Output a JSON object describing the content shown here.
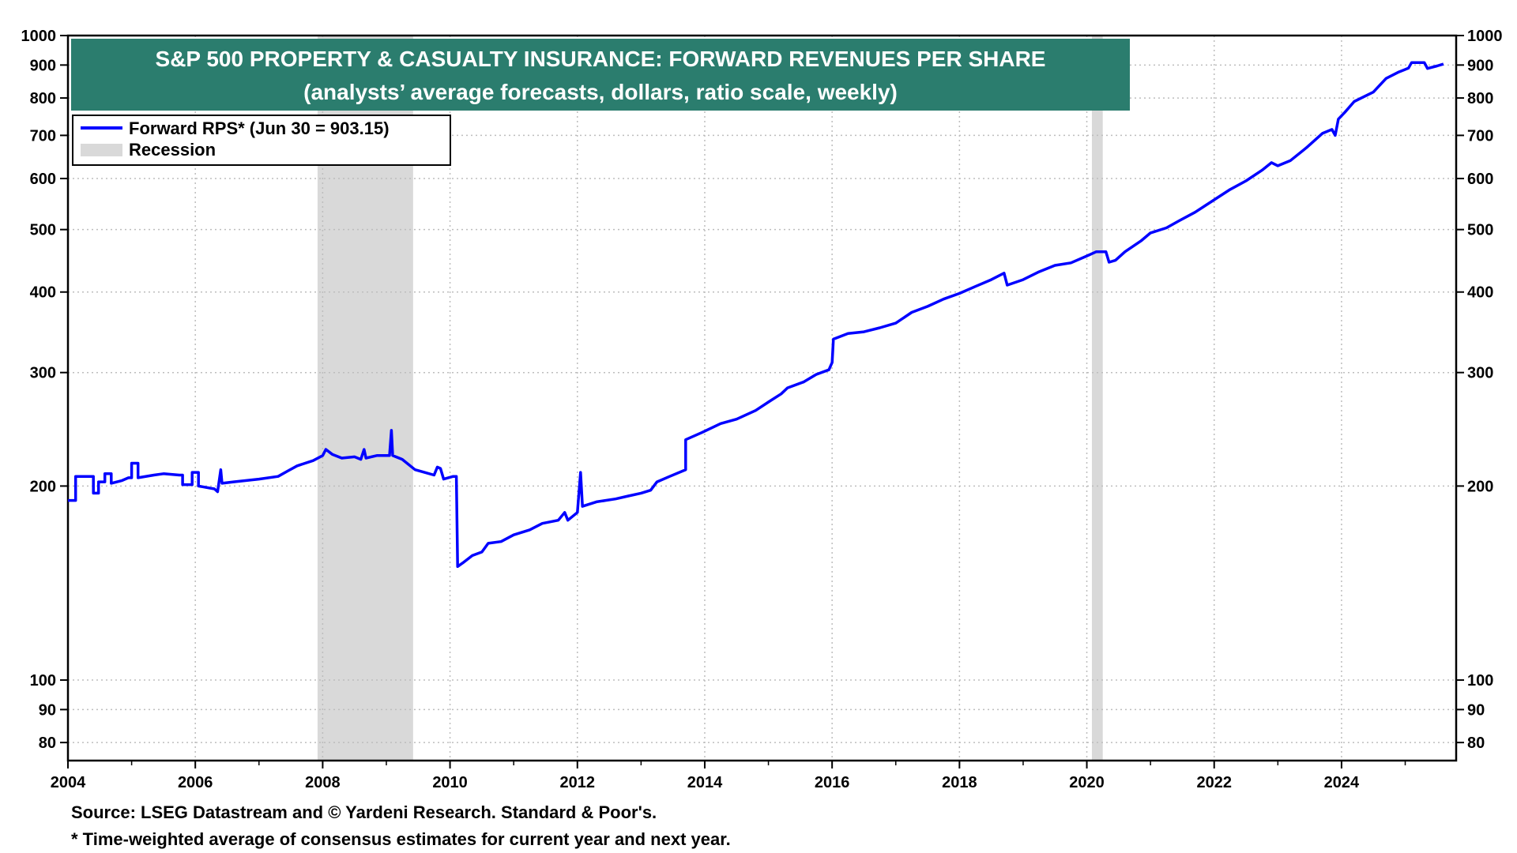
{
  "chart_data": {
    "type": "line",
    "title": "S&P 500 PROPERTY & CASUALTY INSURANCE: FORWARD REVENUES PER SHARE",
    "subtitle": "(analysts’ average forecasts, dollars, ratio scale, weekly)",
    "xlabel": "",
    "ylabel": "",
    "y_scale": "log",
    "ylim": [
      75,
      1000
    ],
    "xlim": [
      2004.0,
      2025.8
    ],
    "x_ticks": [
      "2004",
      "2006",
      "2008",
      "2010",
      "2012",
      "2014",
      "2016",
      "2018",
      "2020",
      "2022",
      "2024"
    ],
    "y_ticks": [
      {
        "value": 1000,
        "label": "1000"
      },
      {
        "value": 900,
        "label": "900"
      },
      {
        "value": 800,
        "label": "800"
      },
      {
        "value": 700,
        "label": "700"
      },
      {
        "value": 600,
        "label": "600"
      },
      {
        "value": 500,
        "label": "500"
      },
      {
        "value": 400,
        "label": "400"
      },
      {
        "value": 300,
        "label": "300"
      },
      {
        "value": 200,
        "label": "200"
      },
      {
        "value": 100,
        "label": "100"
      },
      {
        "value": 90,
        "label": "90"
      },
      {
        "value": 80,
        "label": "80"
      }
    ],
    "grid": true,
    "legend_position": "top-left",
    "legend": {
      "series_label": "Forward RPS* (Jun 30 = 903.15)",
      "recession_label": "Recession"
    },
    "recessions": [
      {
        "start": 2007.92,
        "end": 2009.42
      },
      {
        "start": 2020.08,
        "end": 2020.25
      }
    ],
    "series": [
      {
        "name": "Forward RPS* (Jun 30 = 903.15)",
        "color": "#0000ff",
        "points": [
          [
            2004.0,
            190
          ],
          [
            2004.12,
            190
          ],
          [
            2004.12,
            207
          ],
          [
            2004.4,
            207
          ],
          [
            2004.4,
            195
          ],
          [
            2004.48,
            195
          ],
          [
            2004.48,
            203
          ],
          [
            2004.58,
            203
          ],
          [
            2004.58,
            209
          ],
          [
            2004.68,
            209
          ],
          [
            2004.68,
            202
          ],
          [
            2004.85,
            204
          ],
          [
            2004.95,
            206
          ],
          [
            2005.0,
            206
          ],
          [
            2005.0,
            217
          ],
          [
            2005.1,
            217
          ],
          [
            2005.1,
            206
          ],
          [
            2005.35,
            208
          ],
          [
            2005.5,
            209
          ],
          [
            2005.75,
            208
          ],
          [
            2005.8,
            208
          ],
          [
            2005.8,
            201
          ],
          [
            2005.95,
            201
          ],
          [
            2005.95,
            210
          ],
          [
            2006.05,
            210
          ],
          [
            2006.05,
            200
          ],
          [
            2006.3,
            198
          ],
          [
            2006.35,
            196
          ],
          [
            2006.4,
            212
          ],
          [
            2006.42,
            202
          ],
          [
            2006.6,
            203
          ],
          [
            2006.8,
            204
          ],
          [
            2007.0,
            205
          ],
          [
            2007.3,
            207
          ],
          [
            2007.45,
            211
          ],
          [
            2007.6,
            215
          ],
          [
            2007.85,
            219
          ],
          [
            2008.0,
            223
          ],
          [
            2008.05,
            228
          ],
          [
            2008.15,
            224
          ],
          [
            2008.3,
            221
          ],
          [
            2008.5,
            222
          ],
          [
            2008.6,
            220
          ],
          [
            2008.65,
            228
          ],
          [
            2008.68,
            221
          ],
          [
            2008.85,
            223
          ],
          [
            2009.05,
            223
          ],
          [
            2009.08,
            244
          ],
          [
            2009.1,
            223
          ],
          [
            2009.25,
            220
          ],
          [
            2009.45,
            212
          ],
          [
            2009.6,
            210
          ],
          [
            2009.75,
            208
          ],
          [
            2009.8,
            214
          ],
          [
            2009.85,
            213
          ],
          [
            2009.9,
            205
          ],
          [
            2010.05,
            207
          ],
          [
            2010.1,
            207
          ],
          [
            2010.12,
            150
          ],
          [
            2010.2,
            152
          ],
          [
            2010.35,
            156
          ],
          [
            2010.5,
            158
          ],
          [
            2010.6,
            163
          ],
          [
            2010.8,
            164
          ],
          [
            2011.0,
            168
          ],
          [
            2011.25,
            171
          ],
          [
            2011.45,
            175
          ],
          [
            2011.7,
            177
          ],
          [
            2011.8,
            182
          ],
          [
            2011.85,
            177
          ],
          [
            2012.0,
            182
          ],
          [
            2012.05,
            210
          ],
          [
            2012.08,
            186
          ],
          [
            2012.3,
            189
          ],
          [
            2012.6,
            191
          ],
          [
            2012.8,
            193
          ],
          [
            2013.0,
            195
          ],
          [
            2013.15,
            197
          ],
          [
            2013.25,
            203
          ],
          [
            2013.45,
            207
          ],
          [
            2013.7,
            212
          ],
          [
            2013.7,
            236
          ],
          [
            2013.95,
            242
          ],
          [
            2014.25,
            250
          ],
          [
            2014.5,
            254
          ],
          [
            2014.8,
            262
          ],
          [
            2015.0,
            270
          ],
          [
            2015.2,
            278
          ],
          [
            2015.3,
            284
          ],
          [
            2015.55,
            290
          ],
          [
            2015.75,
            298
          ],
          [
            2015.95,
            303
          ],
          [
            2016.0,
            311
          ],
          [
            2016.02,
            338
          ],
          [
            2016.25,
            345
          ],
          [
            2016.5,
            347
          ],
          [
            2016.75,
            352
          ],
          [
            2017.0,
            358
          ],
          [
            2017.25,
            372
          ],
          [
            2017.5,
            380
          ],
          [
            2017.75,
            390
          ],
          [
            2018.0,
            398
          ],
          [
            2018.25,
            408
          ],
          [
            2018.5,
            418
          ],
          [
            2018.7,
            428
          ],
          [
            2018.75,
            410
          ],
          [
            2019.0,
            418
          ],
          [
            2019.25,
            430
          ],
          [
            2019.5,
            440
          ],
          [
            2019.75,
            444
          ],
          [
            2020.0,
            455
          ],
          [
            2020.15,
            462
          ],
          [
            2020.3,
            462
          ],
          [
            2020.35,
            445
          ],
          [
            2020.45,
            448
          ],
          [
            2020.6,
            462
          ],
          [
            2020.85,
            480
          ],
          [
            2021.0,
            494
          ],
          [
            2021.25,
            503
          ],
          [
            2021.45,
            516
          ],
          [
            2021.7,
            532
          ],
          [
            2022.0,
            556
          ],
          [
            2022.25,
            577
          ],
          [
            2022.5,
            595
          ],
          [
            2022.75,
            618
          ],
          [
            2022.9,
            635
          ],
          [
            2023.0,
            628
          ],
          [
            2023.2,
            640
          ],
          [
            2023.45,
            670
          ],
          [
            2023.7,
            705
          ],
          [
            2023.85,
            715
          ],
          [
            2023.9,
            700
          ],
          [
            2023.95,
            742
          ],
          [
            2024.05,
            760
          ],
          [
            2024.2,
            790
          ],
          [
            2024.5,
            817
          ],
          [
            2024.7,
            858
          ],
          [
            2024.9,
            878
          ],
          [
            2025.05,
            890
          ],
          [
            2025.1,
            908
          ],
          [
            2025.3,
            908
          ],
          [
            2025.35,
            889
          ],
          [
            2025.5,
            897
          ],
          [
            2025.6,
            903.15
          ]
        ]
      }
    ]
  },
  "footnotes": {
    "source": "Source: LSEG Datastream and © Yardeni Research. Standard & Poor's.",
    "note": "* Time-weighted average of consensus estimates for current year and next year."
  }
}
